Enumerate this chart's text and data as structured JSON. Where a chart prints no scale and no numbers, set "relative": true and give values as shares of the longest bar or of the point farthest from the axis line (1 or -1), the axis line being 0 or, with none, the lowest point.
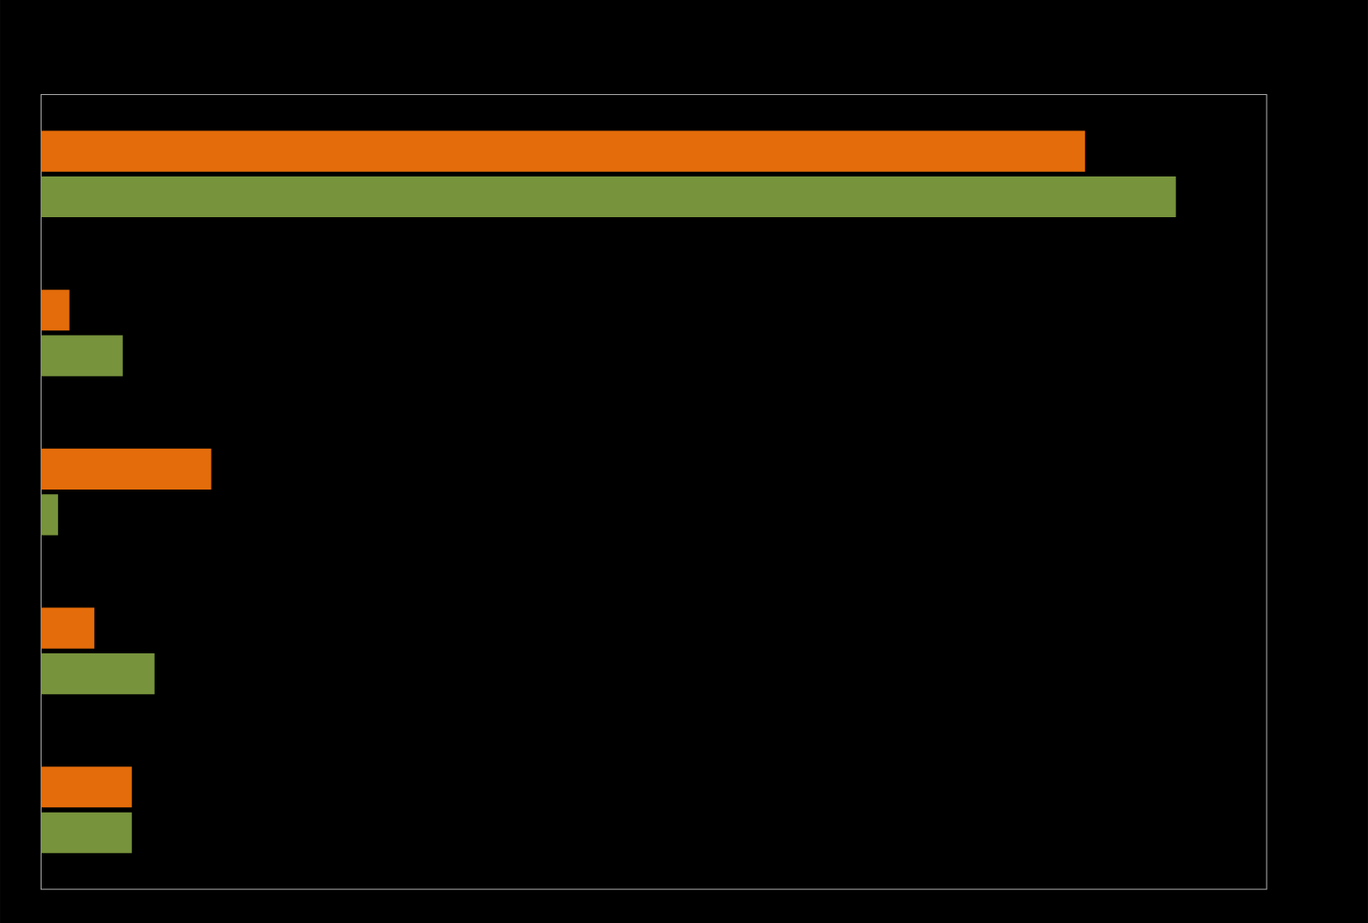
{
  "chart_data": {
    "type": "bar",
    "orientation": "horizontal",
    "relative": true,
    "categories": [
      null,
      null,
      null,
      null,
      null
    ],
    "series": [
      {
        "color": "#e46c0a",
        "values": [
          0.92,
          0.025,
          0.15,
          0.047,
          0.08
        ]
      },
      {
        "color": "#77933c",
        "values": [
          1,
          0.072,
          0.015,
          0.1,
          0.08
        ]
      }
    ]
  }
}
